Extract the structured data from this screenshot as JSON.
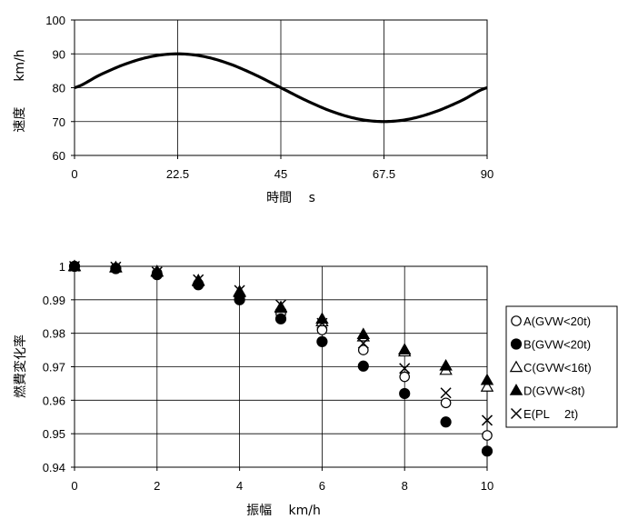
{
  "chart_data": [
    {
      "type": "line",
      "xlabel": "時間　 s",
      "ylabel": "速度　　km/h",
      "xlim": [
        0,
        90
      ],
      "ylim": [
        60,
        100
      ],
      "x_ticks": [
        "0",
        "22.5",
        "45",
        "67.5",
        "90"
      ],
      "y_ticks": [
        "60",
        "70",
        "80",
        "90",
        "100"
      ],
      "grid": true,
      "series": [
        {
          "x": [
            0,
            5.625,
            11.25,
            16.875,
            22.5,
            28.125,
            33.75,
            39.375,
            45,
            50.625,
            56.25,
            61.875,
            67.5,
            73.125,
            78.75,
            84.375,
            90
          ],
          "values": [
            80,
            83.83,
            87.07,
            89.24,
            90,
            89.24,
            87.07,
            83.83,
            80,
            76.17,
            72.93,
            70.76,
            70,
            70.76,
            72.93,
            76.17,
            80
          ]
        }
      ]
    },
    {
      "type": "scatter",
      "xlabel": "振幅　 km/h",
      "ylabel": "燃費変化率",
      "xlim": [
        0,
        10
      ],
      "ylim": [
        0.94,
        1
      ],
      "x_ticks": [
        "0",
        "2",
        "4",
        "6",
        "8",
        "10"
      ],
      "y_ticks": [
        "0.94",
        "0.95",
        "0.96",
        "0.97",
        "0.98",
        "0.99",
        "1"
      ],
      "grid": true,
      "legend_position": "right",
      "series": [
        {
          "name": "A(GVW<20t)",
          "marker": "circle-open",
          "x": [
            0,
            1,
            2,
            3,
            4,
            5,
            6,
            7,
            8,
            9,
            10
          ],
          "values": [
            1,
            0.9995,
            0.998,
            0.9948,
            0.9905,
            0.9858,
            0.981,
            0.975,
            0.967,
            0.9592,
            0.9495
          ]
        },
        {
          "name": "B(GVW<20t)",
          "marker": "circle-filled",
          "x": [
            0,
            1,
            2,
            3,
            4,
            5,
            6,
            7,
            8,
            9,
            10
          ],
          "values": [
            1,
            0.9993,
            0.9975,
            0.9945,
            0.99,
            0.9843,
            0.9775,
            0.9702,
            0.962,
            0.9535,
            0.9448
          ]
        },
        {
          "name": "C(GVW<16t)",
          "marker": "triangle-open",
          "x": [
            0,
            1,
            2,
            3,
            4,
            5,
            6,
            7,
            8,
            9,
            10
          ],
          "values": [
            1,
            0.9997,
            0.9985,
            0.9958,
            0.9925,
            0.9875,
            0.9835,
            0.979,
            0.9745,
            0.969,
            0.964
          ]
        },
        {
          "name": "D(GVW<8t)",
          "marker": "triangle-filled",
          "x": [
            0,
            1,
            2,
            3,
            4,
            5,
            6,
            7,
            8,
            9,
            10
          ],
          "values": [
            1,
            0.9996,
            0.9983,
            0.9955,
            0.9922,
            0.9878,
            0.9843,
            0.9797,
            0.9751,
            0.9703,
            0.966
          ]
        },
        {
          "name": "E(PL　 2t)",
          "marker": "cross",
          "x": [
            0,
            1,
            2,
            3,
            4,
            5,
            6,
            7,
            8,
            9,
            10
          ],
          "values": [
            1,
            0.9998,
            0.9983,
            0.996,
            0.9928,
            0.9885,
            0.983,
            0.977,
            0.9695,
            0.9622,
            0.954
          ]
        }
      ]
    }
  ]
}
